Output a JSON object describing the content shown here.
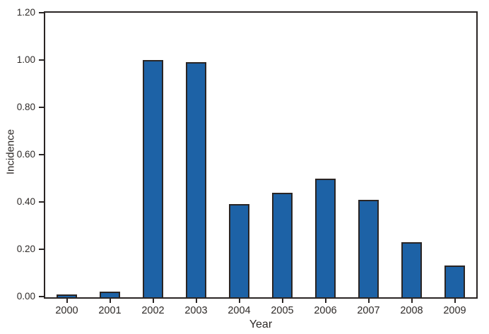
{
  "figure": {
    "background": "#ffffff"
  },
  "chart_data": {
    "type": "bar",
    "xlabel": "Year",
    "ylabel": "Incidence",
    "categories": [
      "2000",
      "2001",
      "2002",
      "2003",
      "2004",
      "2005",
      "2006",
      "2007",
      "2008",
      "2009"
    ],
    "values": [
      0.01,
      0.02,
      1.0,
      0.99,
      0.39,
      0.44,
      0.5,
      0.41,
      0.23,
      0.13
    ],
    "ylim": [
      0.0,
      1.2
    ],
    "ytick_labels": [
      "0.00",
      "0.20",
      "0.40",
      "0.60",
      "0.80",
      "1.00",
      "1.20"
    ],
    "grid": false,
    "legend_position": "none",
    "colors": {
      "bar_fill": "#1d62a6",
      "bar_edge": "#2a2524",
      "axis": "#2a2524",
      "text": "#2e2a28"
    }
  }
}
